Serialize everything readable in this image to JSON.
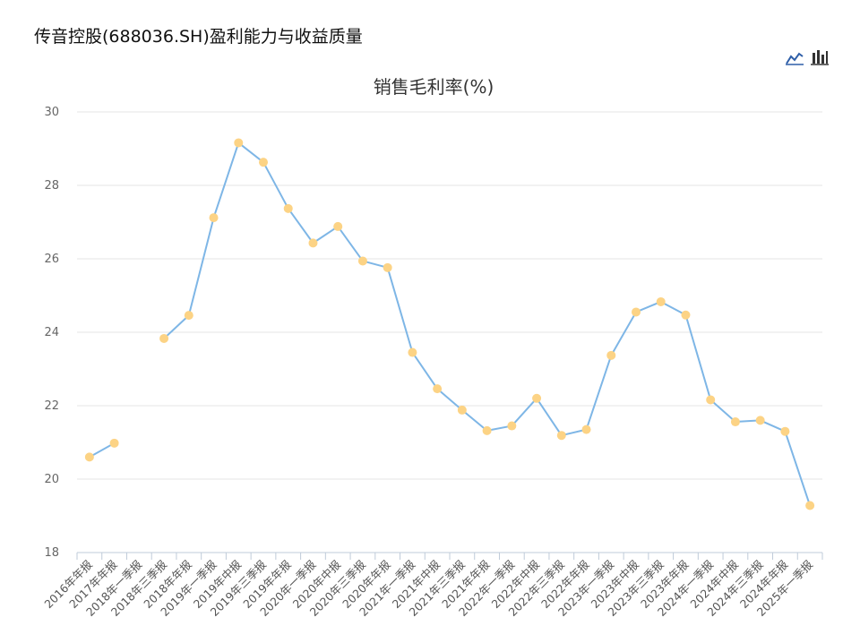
{
  "header": {
    "title": "传音控股(688036.SH)盈利能力与收益质量"
  },
  "toolbar": {
    "line_icon": "line-chart-icon",
    "bar_icon": "bar-chart-icon",
    "active": "line"
  },
  "chart_data": {
    "type": "line",
    "title": "销售毛利率(%)",
    "xlabel": "",
    "ylabel": "",
    "ylim": [
      18,
      30
    ],
    "yticks": [
      18,
      20,
      22,
      24,
      26,
      28,
      30
    ],
    "grid": true,
    "categories": [
      "2016年年报",
      "2017年年报",
      "2018年一季报",
      "2018年三季报",
      "2018年年报",
      "2019年一季报",
      "2019年中报",
      "2019年三季报",
      "2019年年报",
      "2020年一季报",
      "2020年中报",
      "2020年三季报",
      "2020年年报",
      "2021年一季报",
      "2021年中报",
      "2021年三季报",
      "2021年年报",
      "2022年一季报",
      "2022年中报",
      "2022年三季报",
      "2022年年报",
      "2023年一季报",
      "2023年中报",
      "2023年三季报",
      "2023年年报",
      "2024年一季报",
      "2024年中报",
      "2024年三季报",
      "2024年年报",
      "2025年一季报"
    ],
    "series": [
      {
        "line_color": "#7eb6e6",
        "point_color": "#fcd385",
        "values": [
          20.6,
          20.98,
          null,
          23.83,
          24.46,
          27.12,
          29.16,
          28.63,
          27.37,
          26.43,
          26.88,
          25.94,
          25.76,
          23.45,
          22.46,
          21.88,
          21.32,
          21.45,
          22.2,
          21.19,
          21.35,
          23.37,
          24.55,
          24.83,
          24.47,
          22.16,
          21.56,
          21.6,
          21.3,
          19.28
        ]
      }
    ]
  }
}
